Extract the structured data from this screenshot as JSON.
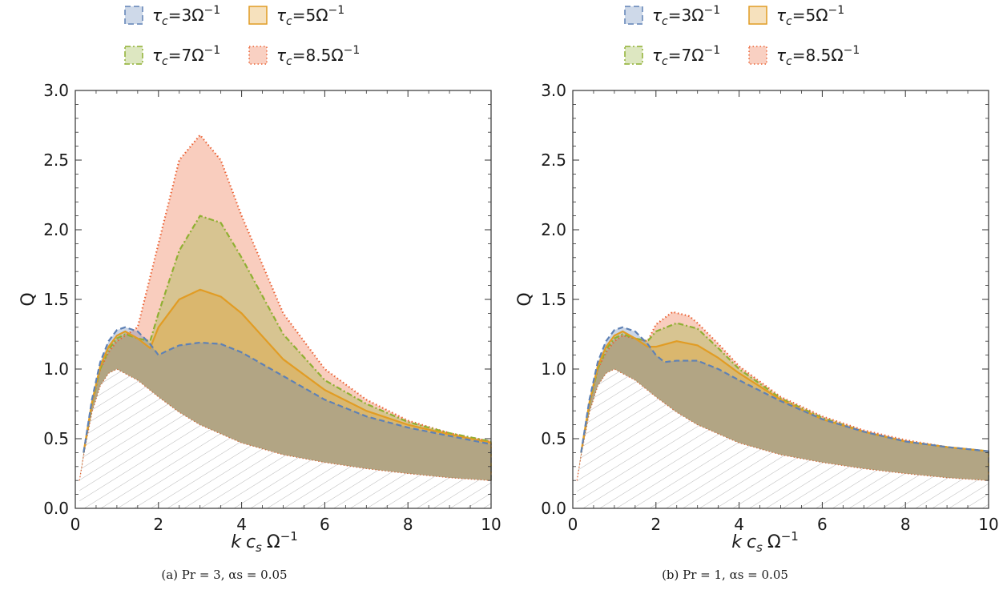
{
  "colors": {
    "tau3": "#5e81b5",
    "tau5": "#e19c24",
    "tau7": "#8fb032",
    "tau85": "#eb6235",
    "hatch": "#b0b0b0",
    "frame": "#333333"
  },
  "legend": {
    "entries": [
      {
        "series": "tau3",
        "prefix": "τ",
        "sub": "c",
        "value": "=3Ω",
        "sup": "−1"
      },
      {
        "series": "tau5",
        "prefix": "τ",
        "sub": "c",
        "value": "=5Ω",
        "sup": "−1"
      },
      {
        "series": "tau7",
        "prefix": "τ",
        "sub": "c",
        "value": "=7Ω",
        "sup": "−1"
      },
      {
        "series": "tau85",
        "prefix": "τ",
        "sub": "c",
        "value": "=8.5Ω",
        "sup": "−1"
      }
    ]
  },
  "chart_data": [
    {
      "type": "area",
      "panel": "a",
      "caption": "(a) Pr = 3, αs = 0.05",
      "xlabel": {
        "k": "k",
        "c": "c",
        "s": "s",
        "omega": "Ω",
        "sup": "−1"
      },
      "ylabel": "Q",
      "xlim": [
        0,
        10
      ],
      "ylim": [
        0,
        3
      ],
      "xticks": [
        "0",
        "2",
        "4",
        "6",
        "8",
        "10"
      ],
      "yticks": [
        "0.0",
        "0.5",
        "1.0",
        "1.5",
        "2.0",
        "2.5",
        "3.0"
      ],
      "lower_bound": {
        "x": [
          0.1,
          0.2,
          0.4,
          0.6,
          0.8,
          1.0,
          1.5,
          2.0,
          2.5,
          3.0,
          4.0,
          5.0,
          6.0,
          7.0,
          8.0,
          9.0,
          10.0
        ],
        "y": [
          0.2,
          0.38,
          0.69,
          0.88,
          0.97,
          1.0,
          0.92,
          0.8,
          0.69,
          0.6,
          0.47,
          0.385,
          0.33,
          0.285,
          0.25,
          0.22,
          0.2
        ]
      },
      "series": [
        {
          "key": "tau85",
          "style": "dotted",
          "x": [
            0.2,
            0.4,
            0.6,
            0.8,
            1.0,
            1.2,
            1.5,
            2.0,
            2.5,
            3.0,
            3.5,
            4.0,
            5.0,
            6.0,
            7.0,
            8.0,
            9.0,
            10.0
          ],
          "y": [
            0.4,
            0.75,
            1.0,
            1.12,
            1.2,
            1.24,
            1.3,
            1.9,
            2.5,
            2.68,
            2.5,
            2.1,
            1.4,
            1.0,
            0.78,
            0.63,
            0.54,
            0.48
          ]
        },
        {
          "key": "tau7",
          "style": "dashdot",
          "x": [
            0.2,
            0.4,
            0.6,
            0.8,
            1.0,
            1.2,
            1.5,
            1.8,
            2.0,
            2.5,
            3.0,
            3.5,
            4.0,
            5.0,
            6.0,
            7.0,
            8.0,
            9.0,
            10.0
          ],
          "y": [
            0.4,
            0.75,
            1.0,
            1.14,
            1.22,
            1.25,
            1.22,
            1.2,
            1.4,
            1.85,
            2.1,
            2.05,
            1.8,
            1.25,
            0.92,
            0.75,
            0.62,
            0.54,
            0.48
          ]
        },
        {
          "key": "tau5",
          "style": "solid",
          "x": [
            0.2,
            0.4,
            0.6,
            0.8,
            1.0,
            1.2,
            1.5,
            1.8,
            2.0,
            2.5,
            3.0,
            3.5,
            4.0,
            5.0,
            6.0,
            7.0,
            8.0,
            9.0,
            10.0
          ],
          "y": [
            0.4,
            0.76,
            1.02,
            1.16,
            1.24,
            1.27,
            1.22,
            1.15,
            1.3,
            1.5,
            1.57,
            1.52,
            1.4,
            1.07,
            0.85,
            0.7,
            0.6,
            0.53,
            0.47
          ]
        },
        {
          "key": "tau3",
          "style": "dashed",
          "x": [
            0.2,
            0.4,
            0.6,
            0.8,
            1.0,
            1.2,
            1.5,
            1.8,
            2.0,
            2.2,
            2.5,
            3.0,
            3.5,
            4.0,
            5.0,
            6.0,
            7.0,
            8.0,
            9.0,
            10.0
          ],
          "y": [
            0.4,
            0.78,
            1.05,
            1.2,
            1.28,
            1.3,
            1.27,
            1.18,
            1.1,
            1.13,
            1.17,
            1.19,
            1.18,
            1.12,
            0.95,
            0.78,
            0.66,
            0.58,
            0.52,
            0.46
          ]
        }
      ]
    },
    {
      "type": "area",
      "panel": "b",
      "caption": "(b) Pr = 1, αs = 0.05",
      "xlabel": {
        "k": "k",
        "c": "c",
        "s": "s",
        "omega": "Ω",
        "sup": "−1"
      },
      "ylabel": "Q",
      "xlim": [
        0,
        10
      ],
      "ylim": [
        0,
        3
      ],
      "xticks": [
        "0",
        "2",
        "4",
        "6",
        "8",
        "10"
      ],
      "yticks": [
        "0.0",
        "0.5",
        "1.0",
        "1.5",
        "2.0",
        "2.5",
        "3.0"
      ],
      "lower_bound": {
        "x": [
          0.1,
          0.2,
          0.4,
          0.6,
          0.8,
          1.0,
          1.5,
          2.0,
          2.5,
          3.0,
          4.0,
          5.0,
          6.0,
          7.0,
          8.0,
          9.0,
          10.0
        ],
        "y": [
          0.2,
          0.38,
          0.69,
          0.88,
          0.97,
          1.0,
          0.92,
          0.8,
          0.69,
          0.6,
          0.47,
          0.385,
          0.33,
          0.285,
          0.25,
          0.22,
          0.2
        ]
      },
      "series": [
        {
          "key": "tau85",
          "style": "dotted",
          "x": [
            0.2,
            0.4,
            0.6,
            0.8,
            1.0,
            1.2,
            1.5,
            1.8,
            2.0,
            2.4,
            2.8,
            3.0,
            3.5,
            4.0,
            5.0,
            6.0,
            7.0,
            8.0,
            9.0,
            10.0
          ],
          "y": [
            0.4,
            0.75,
            1.0,
            1.12,
            1.2,
            1.24,
            1.22,
            1.2,
            1.32,
            1.41,
            1.38,
            1.33,
            1.18,
            1.02,
            0.8,
            0.66,
            0.56,
            0.49,
            0.44,
            0.41
          ]
        },
        {
          "key": "tau7",
          "style": "dashdot",
          "x": [
            0.2,
            0.4,
            0.6,
            0.8,
            1.0,
            1.2,
            1.5,
            1.8,
            2.0,
            2.5,
            3.0,
            3.5,
            4.0,
            5.0,
            6.0,
            7.0,
            8.0,
            9.0,
            10.0
          ],
          "y": [
            0.4,
            0.75,
            1.0,
            1.14,
            1.22,
            1.25,
            1.22,
            1.2,
            1.27,
            1.33,
            1.29,
            1.15,
            1.0,
            0.79,
            0.65,
            0.55,
            0.48,
            0.44,
            0.41
          ]
        },
        {
          "key": "tau5",
          "style": "solid",
          "x": [
            0.2,
            0.4,
            0.6,
            0.8,
            1.0,
            1.2,
            1.5,
            1.8,
            2.0,
            2.5,
            3.0,
            3.5,
            4.0,
            5.0,
            6.0,
            7.0,
            8.0,
            9.0,
            10.0
          ],
          "y": [
            0.4,
            0.76,
            1.02,
            1.16,
            1.24,
            1.27,
            1.22,
            1.16,
            1.16,
            1.2,
            1.17,
            1.08,
            0.97,
            0.78,
            0.64,
            0.55,
            0.48,
            0.44,
            0.41
          ]
        },
        {
          "key": "tau3",
          "style": "dashed",
          "x": [
            0.2,
            0.4,
            0.6,
            0.8,
            1.0,
            1.2,
            1.5,
            1.8,
            2.0,
            2.2,
            2.5,
            3.0,
            3.5,
            4.0,
            5.0,
            6.0,
            7.0,
            8.0,
            9.0,
            10.0
          ],
          "y": [
            0.4,
            0.78,
            1.05,
            1.2,
            1.28,
            1.3,
            1.27,
            1.18,
            1.1,
            1.05,
            1.06,
            1.06,
            1.0,
            0.92,
            0.77,
            0.64,
            0.55,
            0.48,
            0.44,
            0.41
          ]
        }
      ]
    }
  ]
}
